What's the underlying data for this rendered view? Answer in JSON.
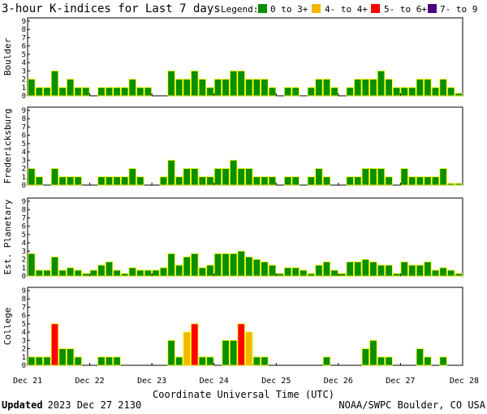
{
  "header": {
    "title": "3-hour K-indices for Last 7 days",
    "legend_title": "Legend:",
    "legend": [
      {
        "label": "0 to 3+",
        "color": "#0a8f00"
      },
      {
        "label": "4- to 4+",
        "color": "#f0b800"
      },
      {
        "label": "5- to 6+",
        "color": "#ff0000"
      },
      {
        "label": "7- to 9",
        "color": "#4b0082"
      }
    ]
  },
  "footer": {
    "updated_bold": "Updated",
    "updated_time": "2023 Dec 27 2130",
    "source": "NOAA/SWPC Boulder, CO USA"
  },
  "chart_data": {
    "type": "bar",
    "title": "3-hour K-indices for Last 7 days",
    "xlabel": "Coordinate Universal Time (UTC)",
    "ylim": [
      0,
      9
    ],
    "yticks": [
      "0",
      "1",
      "2",
      "3",
      "4",
      "5",
      "6",
      "7",
      "8",
      "9"
    ],
    "x_ticks": [
      "Dec 21",
      "Dec 22",
      "Dec 23",
      "Dec 24",
      "Dec 25",
      "Dec 26",
      "Dec 27",
      "Dec 28"
    ],
    "slots_per_day": 8,
    "grid": false,
    "color_scale": [
      {
        "min": 0,
        "max": 3.99,
        "color": "#0a8f00"
      },
      {
        "min": 4,
        "max": 4.99,
        "color": "#f0b800"
      },
      {
        "min": 5,
        "max": 6.99,
        "color": "#ff0000"
      },
      {
        "min": 7,
        "max": 9,
        "color": "#4b0082"
      }
    ],
    "series": [
      {
        "name": "Boulder",
        "values": [
          2,
          1,
          1,
          3,
          1,
          2,
          1,
          1,
          0,
          1,
          1,
          1,
          1,
          2,
          1,
          1,
          0,
          0,
          3,
          2,
          2,
          3,
          2,
          1,
          2,
          2,
          3,
          3,
          2,
          2,
          2,
          1,
          0,
          1,
          1,
          0,
          1,
          2,
          2,
          1,
          0,
          1,
          2,
          2,
          2,
          3,
          2,
          1,
          1,
          1,
          2,
          2,
          1,
          2,
          1,
          0.3
        ]
      },
      {
        "name": "Fredericksburg",
        "values": [
          2,
          1,
          0,
          2,
          1,
          1,
          1,
          0,
          0,
          1,
          1,
          1,
          1,
          2,
          1,
          0,
          0,
          1,
          3,
          1,
          2,
          2,
          1,
          1,
          2,
          2,
          3,
          2,
          2,
          1,
          1,
          1,
          0,
          1,
          1,
          0,
          1,
          2,
          1,
          0,
          0,
          1,
          1,
          2,
          2,
          2,
          1,
          0,
          2,
          1,
          1,
          1,
          1,
          2,
          0.2,
          0.2
        ]
      },
      {
        "name": "Est. Planetary",
        "values": [
          2.7,
          0.7,
          0.7,
          2.3,
          0.7,
          1,
          0.7,
          0.3,
          0.7,
          1.3,
          1.7,
          0.7,
          0.3,
          1,
          0.7,
          0.7,
          0.7,
          1,
          2.7,
          1.3,
          2.3,
          2.7,
          1,
          1.3,
          2.7,
          2.7,
          2.7,
          3,
          2.3,
          2,
          1.7,
          1.3,
          0.3,
          1,
          1,
          0.7,
          0.3,
          1.3,
          1.7,
          0.7,
          0.3,
          1.7,
          1.7,
          2,
          1.7,
          1.3,
          1.3,
          0.3,
          1.7,
          1.3,
          1.3,
          1.7,
          0.7,
          1,
          0.7,
          0.3
        ]
      },
      {
        "name": "College",
        "values": [
          1,
          1,
          1,
          5,
          2,
          2,
          1,
          0,
          0,
          1,
          1,
          1,
          0,
          0,
          0,
          0,
          0,
          0,
          3,
          1,
          4,
          5,
          1,
          1,
          0,
          3,
          3,
          5,
          4,
          1,
          1,
          0,
          0,
          0,
          0,
          0,
          0,
          0,
          1,
          0,
          0,
          0,
          0,
          2,
          3,
          1,
          1,
          0,
          0,
          0,
          2,
          1,
          0,
          1,
          0,
          0
        ]
      }
    ]
  }
}
